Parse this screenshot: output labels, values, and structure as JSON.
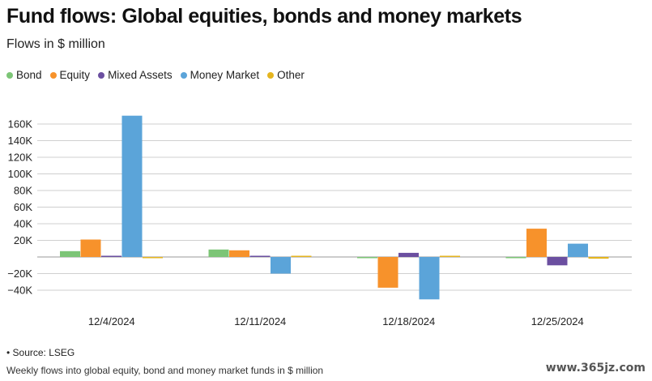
{
  "chart_data": {
    "type": "bar",
    "title": "Fund flows: Global equities, bonds and money markets",
    "subtitle": "Flows in $ million",
    "categories": [
      "12/4/2024",
      "12/11/2024",
      "12/18/2024",
      "12/25/2024"
    ],
    "series": [
      {
        "name": "Bond",
        "color": "#7cc576",
        "values": [
          7000,
          9000,
          -1000,
          -1000
        ]
      },
      {
        "name": "Equity",
        "color": "#f7922b",
        "values": [
          21000,
          8000,
          -37000,
          34000
        ]
      },
      {
        "name": "Mixed Assets",
        "color": "#6b4fa0",
        "values": [
          1000,
          0,
          5000,
          -10000
        ]
      },
      {
        "name": "Money Market",
        "color": "#5ba4d9",
        "values": [
          170000,
          -20000,
          -51000,
          16000
        ]
      },
      {
        "name": "Other",
        "color": "#e5b51f",
        "values": [
          -1000,
          0,
          0,
          -2000
        ]
      }
    ],
    "yticks": [
      -40000,
      -20000,
      20000,
      40000,
      60000,
      80000,
      100000,
      120000,
      140000,
      160000
    ],
    "ytick_labels": [
      "−40K",
      "−20K",
      "20K",
      "40K",
      "60K",
      "80K",
      "100K",
      "120K",
      "140K",
      "160K"
    ],
    "ylim": [
      -50000,
      170000
    ],
    "grid": true,
    "legend": "top-left"
  },
  "source": "• Source: LSEG",
  "footnote": "Weekly flows into global equity, bond and money market funds in $ million",
  "watermark": "www.365jz.com"
}
